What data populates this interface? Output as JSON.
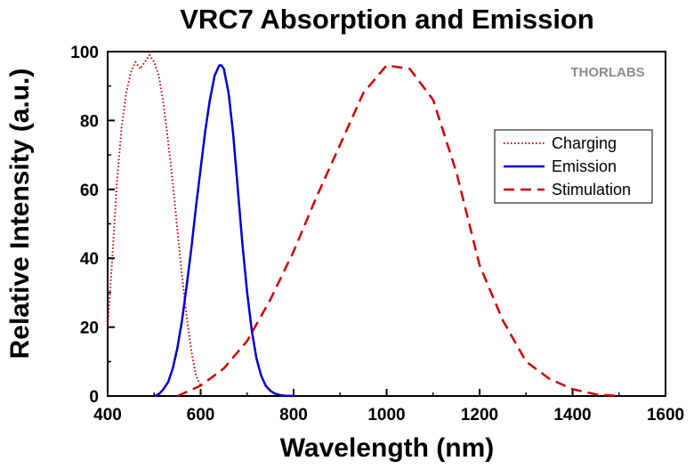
{
  "chart_data": {
    "type": "line",
    "title": "VRC7 Absorption and Emission",
    "xlabel": "Wavelength (nm)",
    "ylabel": "Relative Intensity (a.u.)",
    "xlim": [
      400,
      1600
    ],
    "ylim": [
      0,
      100
    ],
    "xticks": [
      400,
      600,
      800,
      1000,
      1200,
      1400,
      1600
    ],
    "yticks": [
      0,
      20,
      40,
      60,
      80,
      100
    ],
    "grid": false,
    "legend_position": "upper-right",
    "logo": "THORLABS",
    "series": [
      {
        "name": "Charging",
        "color": "#cc0000",
        "style": "dotted",
        "x": [
          400,
          410,
          420,
          430,
          440,
          450,
          460,
          470,
          480,
          490,
          500,
          510,
          520,
          530,
          540,
          550,
          560,
          570,
          580,
          590,
          600
        ],
        "y": [
          20,
          40,
          62,
          78,
          88,
          94,
          97,
          95,
          97,
          99,
          97,
          93,
          85,
          74,
          62,
          48,
          35,
          23,
          13,
          6,
          3
        ]
      },
      {
        "name": "Emission",
        "color": "#0000cc",
        "style": "solid",
        "x": [
          500,
          510,
          520,
          530,
          540,
          550,
          560,
          570,
          580,
          590,
          600,
          610,
          620,
          630,
          640,
          645,
          650,
          660,
          670,
          680,
          690,
          700,
          710,
          720,
          730,
          740,
          750,
          760,
          770,
          780,
          790,
          800
        ],
        "y": [
          0,
          0.5,
          2,
          4,
          8,
          14,
          22,
          32,
          43,
          55,
          66,
          77,
          86,
          93,
          96,
          96,
          95,
          88,
          76,
          60,
          44,
          30,
          19,
          11,
          6,
          3,
          1.5,
          0.7,
          0.3,
          0.1,
          0.05,
          0
        ]
      },
      {
        "name": "Stimulation",
        "color": "#cc0000",
        "style": "dashed",
        "x": [
          550,
          600,
          650,
          700,
          750,
          800,
          850,
          900,
          950,
          1000,
          1050,
          1100,
          1150,
          1200,
          1250,
          1300,
          1350,
          1400,
          1450,
          1500
        ],
        "y": [
          0,
          3,
          8,
          16,
          28,
          42,
          58,
          73,
          88,
          96,
          95,
          86,
          65,
          38,
          22,
          10,
          5,
          2,
          0.5,
          0
        ]
      }
    ]
  }
}
